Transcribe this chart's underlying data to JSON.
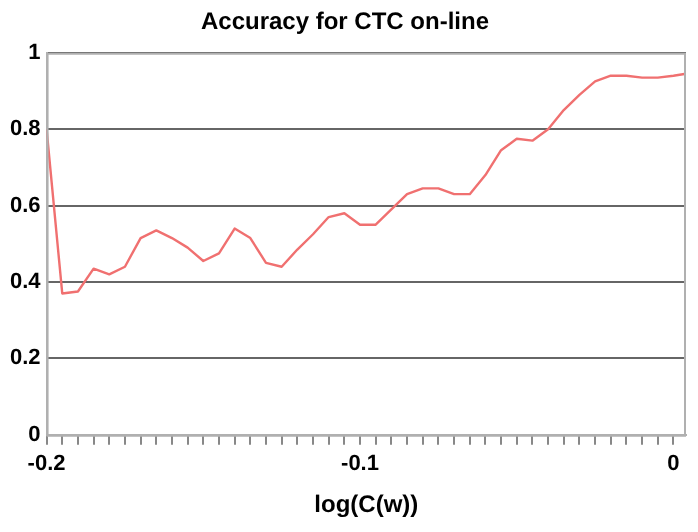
{
  "chart_data": {
    "type": "line",
    "title": "Accuracy for CTC on-line",
    "xlabel": "log(C(w))",
    "x": [
      -0.2,
      -0.195,
      -0.19,
      -0.185,
      -0.18,
      -0.175,
      -0.17,
      -0.165,
      -0.16,
      -0.155,
      -0.15,
      -0.145,
      -0.14,
      -0.135,
      -0.13,
      -0.125,
      -0.12,
      -0.115,
      -0.11,
      -0.105,
      -0.1,
      -0.095,
      -0.09,
      -0.085,
      -0.08,
      -0.075,
      -0.07,
      -0.065,
      -0.06,
      -0.055,
      -0.05,
      -0.045,
      -0.04,
      -0.035,
      -0.03,
      -0.025,
      -0.02,
      -0.015,
      -0.01,
      -0.005,
      0,
      0.004
    ],
    "series": [
      {
        "color": "#f07070",
        "values": [
          0.8,
          0.37,
          0.375,
          0.435,
          0.42,
          0.44,
          0.515,
          0.535,
          0.515,
          0.49,
          0.455,
          0.475,
          0.54,
          0.515,
          0.45,
          0.44,
          0.485,
          0.525,
          0.57,
          0.58,
          0.55,
          0.55,
          0.59,
          0.63,
          0.645,
          0.645,
          0.63,
          0.63,
          0.68,
          0.745,
          0.775,
          0.77,
          0.8,
          0.85,
          0.89,
          0.925,
          0.94,
          0.94,
          0.935,
          0.935,
          0.94,
          0.945
        ]
      }
    ],
    "xlim": [
      -0.2,
      0.004
    ],
    "xticks": [
      -0.2,
      {
        "value": -0.195,
        "label": null
      },
      {
        "value": -0.19,
        "label": null
      },
      {
        "value": -0.185,
        "label": null
      },
      {
        "value": -0.18,
        "label": null
      },
      {
        "value": -0.175,
        "label": null
      },
      {
        "value": -0.17,
        "label": null
      },
      {
        "value": -0.165,
        "label": null
      },
      {
        "value": -0.16,
        "label": null
      },
      {
        "value": -0.155,
        "label": null
      },
      {
        "value": -0.15,
        "label": null
      },
      {
        "value": -0.145,
        "label": null
      },
      {
        "value": -0.14,
        "label": null
      },
      {
        "value": -0.135,
        "label": null
      },
      {
        "value": -0.13,
        "label": null
      },
      {
        "value": -0.125,
        "label": null
      },
      {
        "value": -0.12,
        "label": null
      },
      {
        "value": -0.115,
        "label": null
      },
      {
        "value": -0.11,
        "label": null
      },
      {
        "value": -0.105,
        "label": null
      },
      -0.1,
      {
        "value": -0.095,
        "label": null
      },
      {
        "value": -0.09,
        "label": null
      },
      {
        "value": -0.085,
        "label": null
      },
      {
        "value": -0.08,
        "label": null
      },
      {
        "value": -0.075,
        "label": null
      },
      {
        "value": -0.07,
        "label": null
      },
      {
        "value": -0.065,
        "label": null
      },
      {
        "value": -0.06,
        "label": null
      },
      {
        "value": -0.055,
        "label": null
      },
      {
        "value": -0.05,
        "label": null
      },
      {
        "value": -0.045,
        "label": null
      },
      {
        "value": -0.04,
        "label": null
      },
      {
        "value": -0.035,
        "label": null
      },
      {
        "value": -0.03,
        "label": null
      },
      {
        "value": -0.025,
        "label": null
      },
      {
        "value": -0.02,
        "label": null
      },
      {
        "value": -0.015,
        "label": null
      },
      {
        "value": -0.01,
        "label": null
      },
      {
        "value": -0.005,
        "label": null
      },
      0
    ],
    "ylim": [
      0,
      1
    ],
    "yticks": [
      0,
      0.2,
      0.4,
      0.6,
      0.8,
      1
    ],
    "grid": "y",
    "legend": false,
    "marker": "none",
    "line_style": "solid"
  }
}
